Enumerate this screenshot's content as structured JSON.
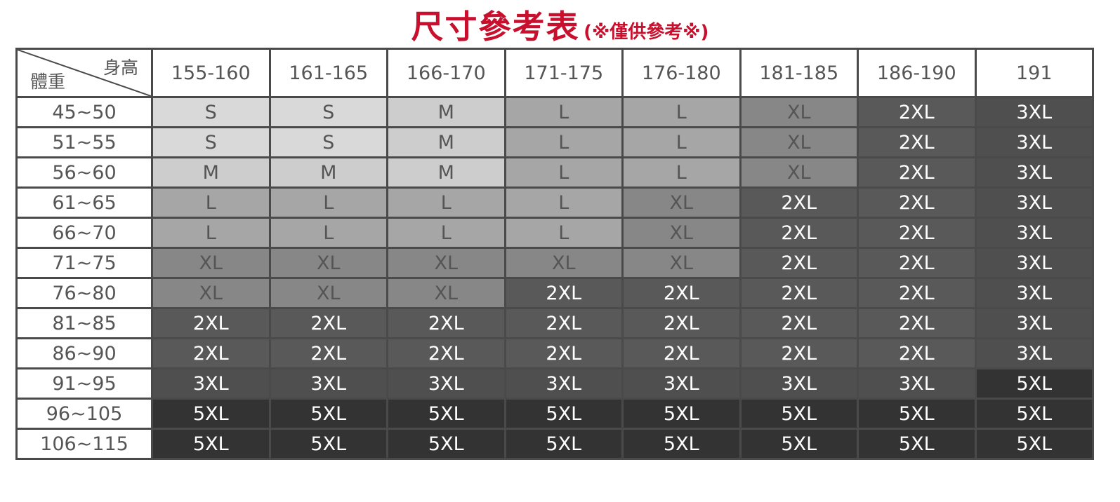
{
  "title": {
    "main": "尺寸參考表",
    "sub": "(※僅供參考※)"
  },
  "corner": {
    "height_label": "身高",
    "weight_label": "體重"
  },
  "heights": [
    "155-160",
    "161-165",
    "166-170",
    "171-175",
    "176-180",
    "181-185",
    "186-190",
    "191"
  ],
  "size_colors": {
    "S": "#d9d9d9",
    "M": "#cdcdcd",
    "L": "#a6a6a6",
    "XL": "#878787",
    "2XL": "#595959",
    "3XL": "#4f4f4f",
    "5XL": "#333333"
  },
  "rows": [
    {
      "weight": "45~50",
      "sizes": [
        "S",
        "S",
        "M",
        "L",
        "L",
        "XL",
        "2XL",
        "3XL"
      ]
    },
    {
      "weight": "51~55",
      "sizes": [
        "S",
        "S",
        "M",
        "L",
        "L",
        "XL",
        "2XL",
        "3XL"
      ]
    },
    {
      "weight": "56~60",
      "sizes": [
        "M",
        "M",
        "M",
        "L",
        "L",
        "XL",
        "2XL",
        "3XL"
      ]
    },
    {
      "weight": "61~65",
      "sizes": [
        "L",
        "L",
        "L",
        "L",
        "XL",
        "2XL",
        "2XL",
        "3XL"
      ]
    },
    {
      "weight": "66~70",
      "sizes": [
        "L",
        "L",
        "L",
        "L",
        "XL",
        "2XL",
        "2XL",
        "3XL"
      ]
    },
    {
      "weight": "71~75",
      "sizes": [
        "XL",
        "XL",
        "XL",
        "XL",
        "XL",
        "2XL",
        "2XL",
        "3XL"
      ]
    },
    {
      "weight": "76~80",
      "sizes": [
        "XL",
        "XL",
        "XL",
        "2XL",
        "2XL",
        "2XL",
        "2XL",
        "3XL"
      ]
    },
    {
      "weight": "81~85",
      "sizes": [
        "2XL",
        "2XL",
        "2XL",
        "2XL",
        "2XL",
        "2XL",
        "2XL",
        "3XL"
      ]
    },
    {
      "weight": "86~90",
      "sizes": [
        "2XL",
        "2XL",
        "2XL",
        "2XL",
        "2XL",
        "2XL",
        "2XL",
        "3XL"
      ]
    },
    {
      "weight": "91~95",
      "sizes": [
        "3XL",
        "3XL",
        "3XL",
        "3XL",
        "3XL",
        "3XL",
        "3XL",
        "5XL"
      ]
    },
    {
      "weight": "96~105",
      "sizes": [
        "5XL",
        "5XL",
        "5XL",
        "5XL",
        "5XL",
        "5XL",
        "5XL",
        "5XL"
      ]
    },
    {
      "weight": "106~115",
      "sizes": [
        "5XL",
        "5XL",
        "5XL",
        "5XL",
        "5XL",
        "5XL",
        "5XL",
        "5XL"
      ]
    }
  ]
}
